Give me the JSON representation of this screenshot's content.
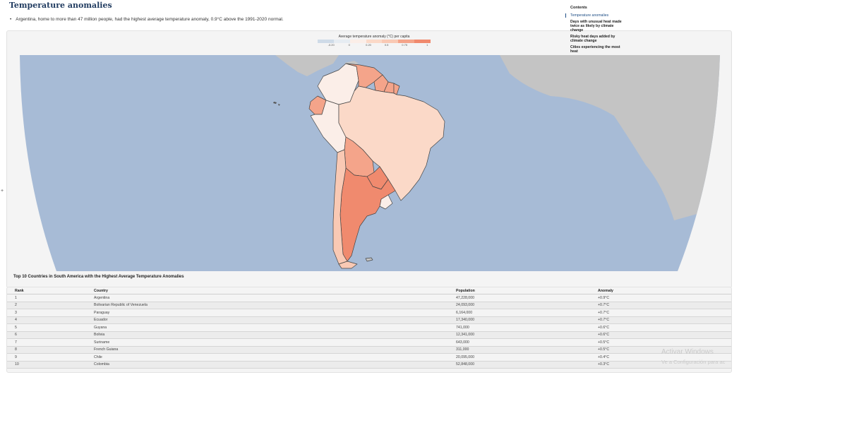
{
  "section": {
    "title": "Temperature anomalies",
    "summary": "Argentina, home to more than 47 million people, had the highest average temperature anomaly, 0.9°C above the 1991-2020 normal."
  },
  "edge_mark": "+",
  "map": {
    "legend_title": "Average temperature anomaly (°C) per capita",
    "legend_ticks": [
      "-0.20",
      "0",
      "0.20",
      "0.5",
      "0.75",
      "1"
    ],
    "colors": {
      "ocean": "#a7bbd6",
      "land_other": "#c4c4c4",
      "highest": "#f08a6e",
      "high": "#f4a48a",
      "mid": "#f9c9b4",
      "low": "#fbd9c8",
      "lowest": "#fbeee8"
    }
  },
  "table": {
    "caption": "Top 10 Countries in South America with the Highest Average Temperature Anomalies",
    "headers": [
      "Rank",
      "Country",
      "Population",
      "Anomaly"
    ],
    "rows": [
      {
        "rank": "1",
        "country": "Argentina",
        "population": "47,228,000",
        "anomaly": "+0.9°C"
      },
      {
        "rank": "2",
        "country": "Bolivarian Republic of Venezuela",
        "population": "24,093,000",
        "anomaly": "+0.7°C"
      },
      {
        "rank": "3",
        "country": "Paraguay",
        "population": "6,164,000",
        "anomaly": "+0.7°C"
      },
      {
        "rank": "4",
        "country": "Ecuador",
        "population": "17,340,000",
        "anomaly": "+0.7°C"
      },
      {
        "rank": "5",
        "country": "Guyana",
        "population": "741,000",
        "anomaly": "+0.6°C"
      },
      {
        "rank": "6",
        "country": "Bolivia",
        "population": "12,341,000",
        "anomaly": "+0.6°C"
      },
      {
        "rank": "7",
        "country": "Suriname",
        "population": "643,000",
        "anomaly": "+0.5°C"
      },
      {
        "rank": "8",
        "country": "French Guiana",
        "population": "311,000",
        "anomaly": "+0.5°C"
      },
      {
        "rank": "9",
        "country": "Chile",
        "population": "20,095,000",
        "anomaly": "+0.4°C"
      },
      {
        "rank": "10",
        "country": "Colombia",
        "population": "52,848,000",
        "anomaly": "+0.3°C"
      }
    ]
  },
  "toc": {
    "heading": "Contents",
    "items": [
      "Temperature anomalies",
      "Days with unusual heat made twice as likely by climate change",
      "Risky heat days added by climate change",
      "Cities experiencing the most heat"
    ]
  },
  "watermark": {
    "line1": "Activar Windows",
    "line2": "Ve a Configuración para ac"
  }
}
